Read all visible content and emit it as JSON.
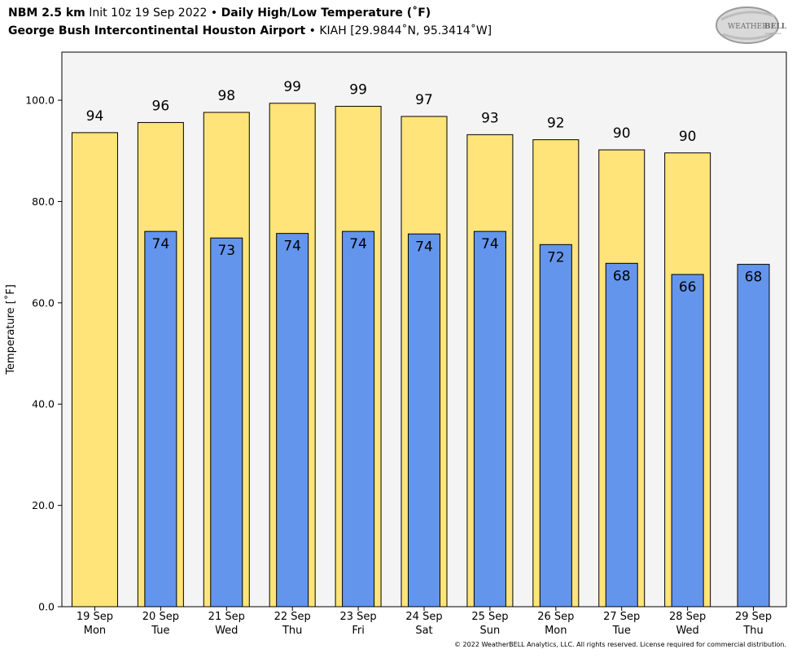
{
  "header": {
    "line1": {
      "model": "NBM 2.5 km",
      "init": "Init 10z 19 Sep 2022",
      "sep": "•",
      "product": "Daily High/Low Temperature (˚F)"
    },
    "line2": {
      "station": "George Bush Intercontinental Houston Airport",
      "sep": "•",
      "location": "KIAH [29.9844˚N, 95.3414˚W]"
    }
  },
  "logo": {
    "text_big": "WEATHER",
    "text_bell": "BELL",
    "text_small": "Analytics LLC"
  },
  "footer": {
    "copyright": "© 2022 WeatherBELL Analytics, LLC. All rights reserved. License required for commercial distribution."
  },
  "colors": {
    "high": "#FFE47A",
    "low": "#6495ED",
    "plot_bg": "#F4F4F4"
  },
  "chart_data": {
    "type": "bar",
    "title": "Daily High/Low Temperature (˚F)",
    "ylabel": "Temperature [˚F]",
    "xlabel": "",
    "ylim": [
      0,
      109.5
    ],
    "yticks": [
      "0.0",
      "20.0",
      "40.0",
      "60.0",
      "80.0",
      "100.0"
    ],
    "ytick_values": [
      0,
      20,
      40,
      60,
      80,
      100
    ],
    "grid": false,
    "categories": [
      [
        "19 Sep",
        "Mon"
      ],
      [
        "20 Sep",
        "Tue"
      ],
      [
        "21 Sep",
        "Wed"
      ],
      [
        "22 Sep",
        "Thu"
      ],
      [
        "23 Sep",
        "Fri"
      ],
      [
        "24 Sep",
        "Sat"
      ],
      [
        "25 Sep",
        "Sun"
      ],
      [
        "26 Sep",
        "Mon"
      ],
      [
        "27 Sep",
        "Tue"
      ],
      [
        "28 Sep",
        "Wed"
      ],
      [
        "29 Sep",
        "Thu"
      ]
    ],
    "series": [
      {
        "name": "High",
        "values": [
          93.6,
          95.6,
          97.6,
          99.4,
          98.8,
          96.8,
          93.2,
          92.2,
          90.2,
          89.6,
          null
        ],
        "labels": [
          "94",
          "96",
          "98",
          "99",
          "99",
          "97",
          "93",
          "92",
          "90",
          "90",
          ""
        ]
      },
      {
        "name": "Low",
        "values": [
          null,
          74.1,
          72.8,
          73.7,
          74.1,
          73.6,
          74.1,
          71.5,
          67.8,
          65.6,
          67.6
        ],
        "labels": [
          "",
          "74",
          "73",
          "74",
          "74",
          "74",
          "74",
          "72",
          "68",
          "66",
          "68"
        ]
      }
    ]
  }
}
